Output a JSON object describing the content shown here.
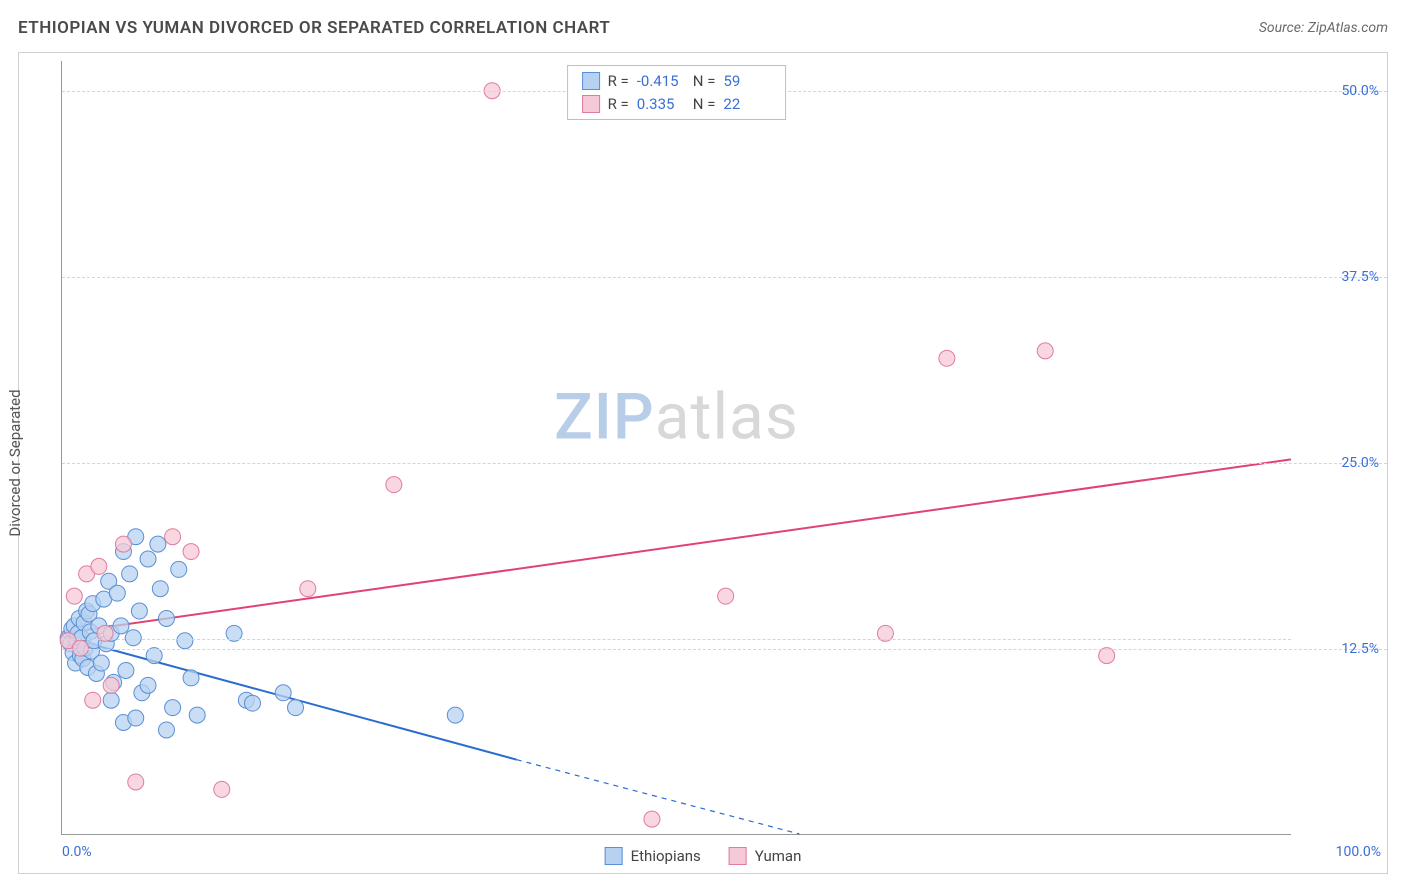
{
  "title": "ETHIOPIAN VS YUMAN DIVORCED OR SEPARATED CORRELATION CHART",
  "source": "Source: ZipAtlas.com",
  "y_axis_label": "Divorced or Separated",
  "watermark": {
    "part1": "ZIP",
    "part2": "atlas"
  },
  "axes": {
    "xlim": [
      0,
      100
    ],
    "ylim": [
      0,
      52
    ],
    "y_ticks": [
      {
        "value": 12.5,
        "label": "12.5%"
      },
      {
        "value": 25.0,
        "label": "25.0%"
      },
      {
        "value": 37.5,
        "label": "37.5%"
      },
      {
        "value": 50.0,
        "label": "50.0%"
      }
    ],
    "x_ticks": [
      {
        "value": 0,
        "label": "0.0%"
      },
      {
        "value": 100,
        "label": "100.0%"
      }
    ],
    "grid_color": "#d5d5d5",
    "tick_label_color": "#3b6fd6"
  },
  "series": [
    {
      "name": "Ethiopians",
      "color_fill": "#b7d1f0",
      "color_stroke": "#5a8fd6",
      "r_value": "-0.415",
      "n_value": "59",
      "marker_radius": 8,
      "marker_opacity": 0.75,
      "trend": {
        "x1": 0,
        "y1": 13.3,
        "x2": 37,
        "y2": 5.0,
        "solid": true,
        "color": "#2b6cd1",
        "width": 2
      },
      "trend_ext": {
        "x1": 37,
        "y1": 5.0,
        "x2": 60,
        "y2": 0.0,
        "color": "#2b6cd1",
        "width": 1.2
      },
      "points": [
        [
          0.5,
          13.2
        ],
        [
          0.7,
          12.8
        ],
        [
          0.8,
          13.8
        ],
        [
          0.9,
          12.2
        ],
        [
          1.0,
          14.0
        ],
        [
          1.1,
          11.5
        ],
        [
          1.2,
          13.0
        ],
        [
          1.3,
          13.5
        ],
        [
          1.4,
          14.5
        ],
        [
          1.5,
          12.0
        ],
        [
          1.6,
          13.2
        ],
        [
          1.7,
          11.8
        ],
        [
          1.8,
          14.2
        ],
        [
          1.9,
          12.5
        ],
        [
          2.0,
          15.0
        ],
        [
          2.1,
          11.2
        ],
        [
          2.2,
          14.8
        ],
        [
          2.3,
          13.6
        ],
        [
          2.4,
          12.3
        ],
        [
          2.5,
          15.5
        ],
        [
          2.6,
          13.0
        ],
        [
          2.8,
          10.8
        ],
        [
          3.0,
          14.0
        ],
        [
          3.2,
          11.5
        ],
        [
          3.4,
          15.8
        ],
        [
          3.6,
          12.8
        ],
        [
          3.8,
          17.0
        ],
        [
          4.0,
          13.5
        ],
        [
          4.2,
          10.2
        ],
        [
          4.5,
          16.2
        ],
        [
          4.8,
          14.0
        ],
        [
          5.0,
          19.0
        ],
        [
          5.2,
          11.0
        ],
        [
          5.5,
          17.5
        ],
        [
          5.8,
          13.2
        ],
        [
          6.0,
          20.0
        ],
        [
          6.3,
          15.0
        ],
        [
          6.5,
          9.5
        ],
        [
          7.0,
          18.5
        ],
        [
          7.5,
          12.0
        ],
        [
          7.8,
          19.5
        ],
        [
          8.0,
          16.5
        ],
        [
          8.5,
          14.5
        ],
        [
          9.0,
          8.5
        ],
        [
          9.5,
          17.8
        ],
        [
          10.0,
          13.0
        ],
        [
          5.0,
          7.5
        ],
        [
          6.0,
          7.8
        ],
        [
          7.0,
          10.0
        ],
        [
          8.5,
          7.0
        ],
        [
          10.5,
          10.5
        ],
        [
          11.0,
          8.0
        ],
        [
          14.0,
          13.5
        ],
        [
          15.0,
          9.0
        ],
        [
          15.5,
          8.8
        ],
        [
          18.0,
          9.5
        ],
        [
          19.0,
          8.5
        ],
        [
          32.0,
          8.0
        ],
        [
          4.0,
          9.0
        ]
      ]
    },
    {
      "name": "Yuman",
      "color_fill": "#f6c9d6",
      "color_stroke": "#e07ba0",
      "r_value": "0.335",
      "n_value": "22",
      "marker_radius": 8,
      "marker_opacity": 0.75,
      "trend": {
        "x1": 0,
        "y1": 13.5,
        "x2": 100,
        "y2": 25.2,
        "solid": true,
        "color": "#e24176",
        "width": 2
      },
      "points": [
        [
          0.5,
          13.0
        ],
        [
          1.0,
          16.0
        ],
        [
          1.5,
          12.5
        ],
        [
          2.0,
          17.5
        ],
        [
          2.5,
          9.0
        ],
        [
          3.0,
          18.0
        ],
        [
          3.5,
          13.5
        ],
        [
          4.0,
          10.0
        ],
        [
          5.0,
          19.5
        ],
        [
          9.0,
          20.0
        ],
        [
          10.5,
          19.0
        ],
        [
          6.0,
          3.5
        ],
        [
          13.0,
          3.0
        ],
        [
          20.0,
          16.5
        ],
        [
          27.0,
          23.5
        ],
        [
          35.0,
          50.0
        ],
        [
          48.0,
          1.0
        ],
        [
          54.0,
          16.0
        ],
        [
          67.0,
          13.5
        ],
        [
          72.0,
          32.0
        ],
        [
          80.0,
          32.5
        ],
        [
          85.0,
          12.0
        ]
      ]
    }
  ],
  "bottom_legend": [
    {
      "label": "Ethiopians",
      "fill": "#b7d1f0",
      "stroke": "#5a8fd6"
    },
    {
      "label": "Yuman",
      "fill": "#f6c9d6",
      "stroke": "#e07ba0"
    }
  ],
  "stats_box": {
    "r_prefix": "R =",
    "n_prefix": "N ="
  }
}
